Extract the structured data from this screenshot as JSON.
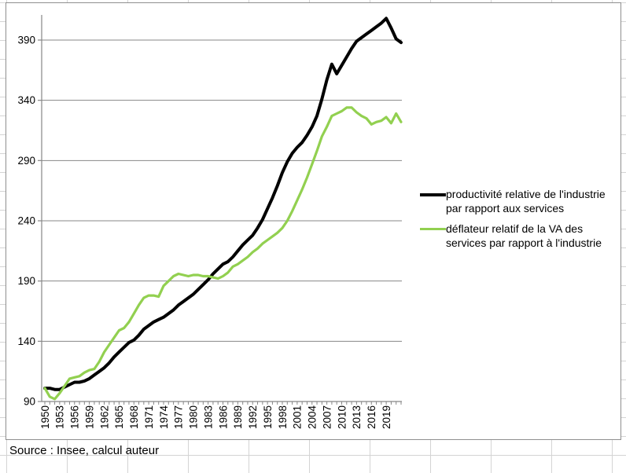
{
  "source_note": "Source : Insee, calcul auteur",
  "colors": {
    "series_black": "#000000",
    "series_green": "#92d050",
    "axis_gray": "#878787",
    "excel_gridline": "#d4d4d4",
    "chart_border": "#8f8f8f"
  },
  "chart_data": {
    "type": "line",
    "title": "",
    "xlabel": "",
    "ylabel": "",
    "grid": "horizontal",
    "legend_position": "right",
    "ylim": [
      90,
      411
    ],
    "y_ticks": [
      90,
      140,
      190,
      240,
      290,
      340,
      390
    ],
    "x_tick_labels": [
      "1950",
      "1953",
      "1956",
      "1959",
      "1962",
      "1965",
      "1968",
      "1971",
      "1974",
      "1977",
      "1980",
      "1983",
      "1986",
      "1989",
      "1992",
      "1995",
      "1998",
      "2001",
      "2004",
      "2007",
      "2010",
      "2013",
      "2016",
      "2019"
    ],
    "years": [
      1950,
      1951,
      1952,
      1953,
      1954,
      1955,
      1956,
      1957,
      1958,
      1959,
      1960,
      1961,
      1962,
      1963,
      1964,
      1965,
      1966,
      1967,
      1968,
      1969,
      1970,
      1971,
      1972,
      1973,
      1974,
      1975,
      1976,
      1977,
      1978,
      1979,
      1980,
      1981,
      1982,
      1983,
      1984,
      1985,
      1986,
      1987,
      1988,
      1989,
      1990,
      1991,
      1992,
      1993,
      1994,
      1995,
      1996,
      1997,
      1998,
      1999,
      2000,
      2001,
      2002,
      2003,
      2004,
      2005,
      2006,
      2007,
      2008,
      2009,
      2010,
      2011,
      2012,
      2013,
      2014,
      2015,
      2016,
      2017,
      2018,
      2019,
      2020,
      2021,
      2022
    ],
    "series": [
      {
        "name": "productivité relative de l'industrie par rapport aux services",
        "color": "#000000",
        "stroke_width": 4,
        "values": [
          101,
          101,
          100,
          100,
          102,
          104,
          106,
          106,
          107,
          109,
          112,
          115,
          118,
          122,
          127,
          131,
          135,
          139,
          141,
          145,
          150,
          153,
          156,
          158,
          160,
          163,
          166,
          170,
          173,
          176,
          179,
          183,
          187,
          191,
          196,
          200,
          204,
          206,
          210,
          215,
          220,
          224,
          228,
          234,
          241,
          250,
          259,
          269,
          280,
          289,
          296,
          301,
          305,
          311,
          318,
          327,
          341,
          357,
          370,
          362,
          369,
          376,
          383,
          389,
          392,
          395,
          398,
          401,
          404,
          408,
          400,
          391,
          388
        ]
      },
      {
        "name": "déflateur relatif de la VA des services par rapport à l'industrie",
        "color": "#92d050",
        "stroke_width": 3.2,
        "values": [
          101,
          94,
          92,
          97,
          103,
          109,
          110,
          111,
          114,
          116,
          117,
          123,
          131,
          137,
          143,
          149,
          151,
          156,
          163,
          170,
          176,
          178,
          178,
          177,
          186,
          190,
          194,
          196,
          195,
          194,
          195,
          195,
          194,
          194,
          193,
          192,
          194,
          197,
          202,
          204,
          207,
          210,
          214,
          217,
          221,
          224,
          227,
          230,
          234,
          240,
          248,
          257,
          266,
          276,
          287,
          298,
          310,
          318,
          327,
          329,
          331,
          334,
          334,
          330,
          327,
          325,
          320,
          322,
          323,
          326,
          321,
          329,
          322
        ]
      }
    ]
  }
}
